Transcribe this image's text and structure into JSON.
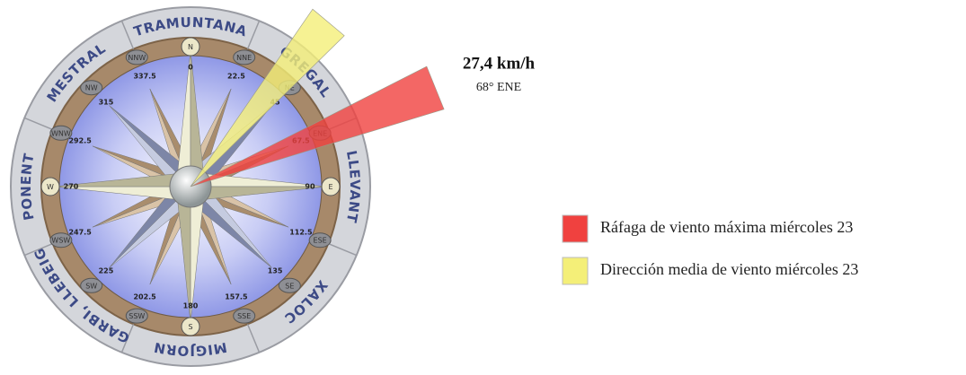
{
  "compass": {
    "winds": [
      {
        "name": "TRAMUNTANA"
      },
      {
        "name": "GREGAL"
      },
      {
        "name": "LLEVANT"
      },
      {
        "name": "XALOC"
      },
      {
        "name": "MIGJORN"
      },
      {
        "name": "GARBI, LLEBEIG"
      },
      {
        "name": "PONENT"
      },
      {
        "name": "MESTRAL"
      }
    ],
    "points": [
      {
        "label": "N",
        "degrees": 0
      },
      {
        "label": "NNE",
        "degrees": 22.5
      },
      {
        "label": "NE",
        "degrees": 45
      },
      {
        "label": "ENE",
        "degrees": 67.5
      },
      {
        "label": "E",
        "degrees": 90
      },
      {
        "label": "ESE",
        "degrees": 112.5
      },
      {
        "label": "SE",
        "degrees": 135
      },
      {
        "label": "SSE",
        "degrees": 157.5
      },
      {
        "label": "S",
        "degrees": 180
      },
      {
        "label": "SSW",
        "degrees": 202.5
      },
      {
        "label": "SW",
        "degrees": 225
      },
      {
        "label": "WSW",
        "degrees": 247.5
      },
      {
        "label": "W",
        "degrees": 270
      },
      {
        "label": "WNW",
        "degrees": 292.5
      },
      {
        "label": "NW",
        "degrees": 315
      },
      {
        "label": "NNW",
        "degrees": 337.5
      }
    ]
  },
  "wind": {
    "gust_direction": 68,
    "speed_label": "27,4 km/h",
    "direction_label": "68° ENE",
    "mean_direction": 40
  },
  "legend": [
    {
      "label": "Ráfaga de viento máxima miércoles 23",
      "color": "#f0413f"
    },
    {
      "label": "Dirección media de viento miércoles 23",
      "color": "#f4ef78"
    }
  ]
}
